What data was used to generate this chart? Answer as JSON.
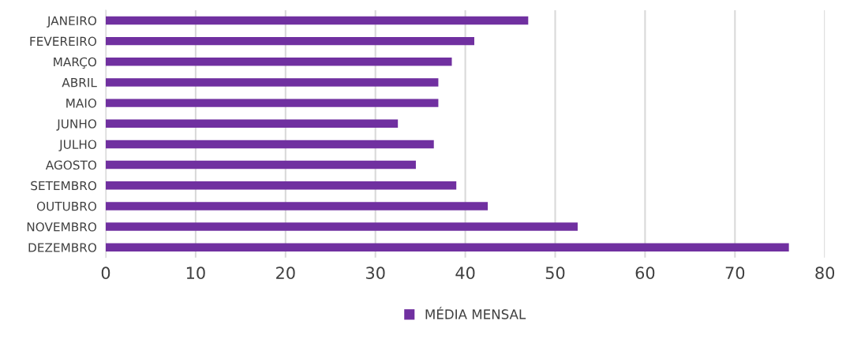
{
  "chart_data": {
    "type": "bar",
    "orientation": "horizontal",
    "categories": [
      "JANEIRO",
      "FEVEREIRO",
      "MARÇO",
      "ABRIL",
      "MAIO",
      "JUNHO",
      "JULHO",
      "AGOSTO",
      "SETEMBRO",
      "OUTUBRO",
      "NOVEMBRO",
      "DEZEMBRO"
    ],
    "series": [
      {
        "name": "MÉDIA MENSAL",
        "color": "#7030a0",
        "values": [
          47,
          41,
          38.5,
          37,
          37,
          32.5,
          36.5,
          34.5,
          39,
          42.5,
          52.5,
          76
        ]
      }
    ],
    "xlim": [
      0,
      80
    ],
    "xticks": [
      0,
      10,
      20,
      30,
      40,
      50,
      60,
      70,
      80
    ],
    "grid": "x",
    "legend": "bottom"
  }
}
